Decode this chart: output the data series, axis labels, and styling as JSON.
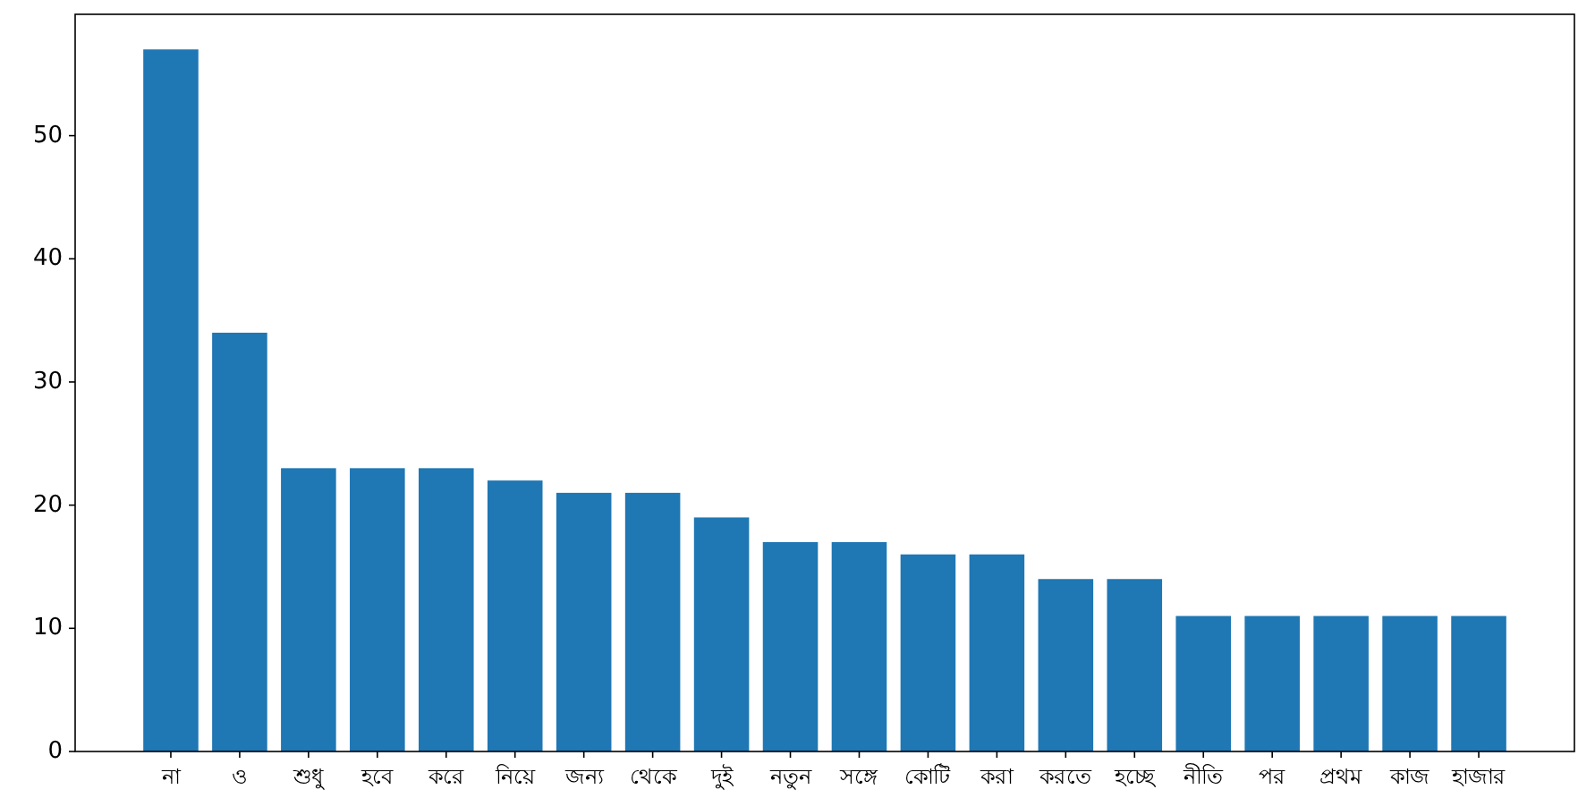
{
  "chart_data": {
    "type": "bar",
    "categories": [
      "না",
      "ও",
      "শুধু",
      "হবে",
      "করে",
      "নিয়ে",
      "জন্য",
      "থেকে",
      "দুই",
      "নতুন",
      "সঙ্গে",
      "কোটি",
      "করা",
      "করতে",
      "হচ্ছে",
      "নীতি",
      "পর",
      "প্রথম",
      "কাজ",
      "হাজার"
    ],
    "values": [
      57,
      34,
      23,
      23,
      23,
      22,
      21,
      21,
      19,
      17,
      17,
      16,
      16,
      14,
      14,
      11,
      11,
      11,
      11,
      11
    ],
    "color": "#1f77b4",
    "ylim": [
      0,
      59.85
    ],
    "yticks": [
      0,
      10,
      20,
      30,
      40,
      50
    ]
  }
}
